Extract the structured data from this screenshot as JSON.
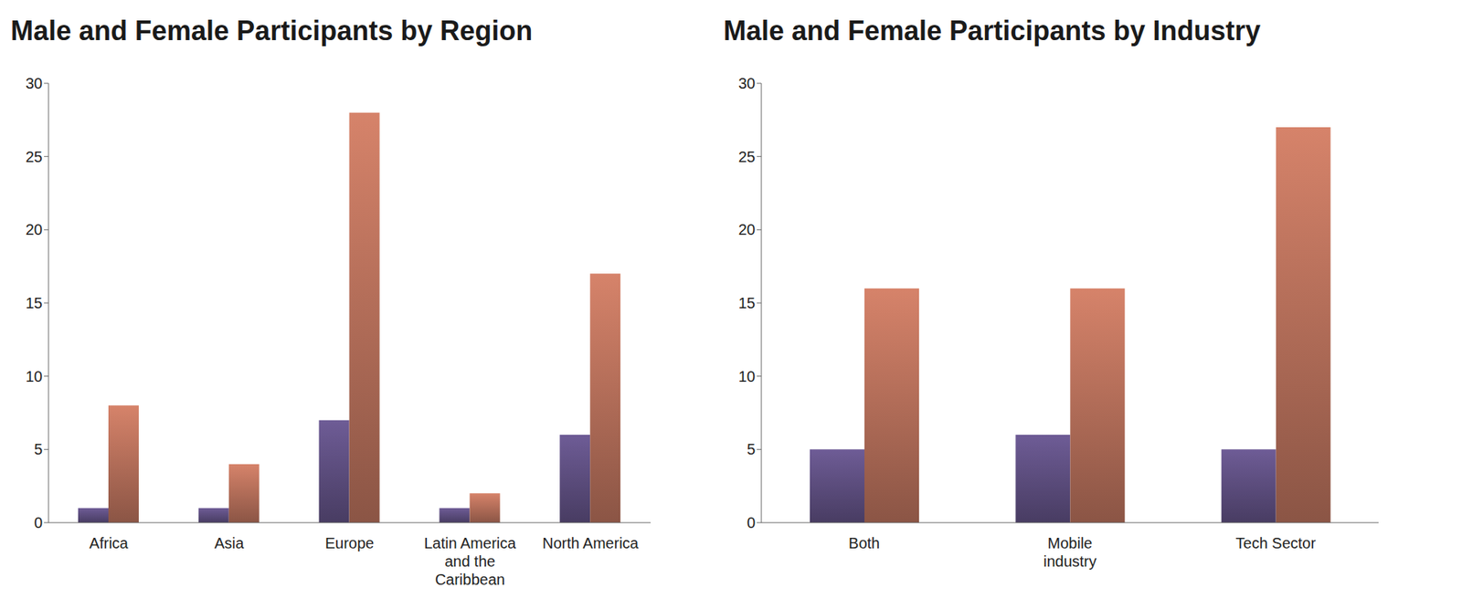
{
  "chart_data": [
    {
      "type": "bar",
      "title": "Male and Female Participants by Region",
      "categories": [
        "Africa",
        "Asia",
        "Europe",
        "Latin America and the Caribbean",
        "North America"
      ],
      "series": [
        {
          "color": "#6e5c96",
          "values": [
            1,
            1,
            7,
            1,
            6
          ]
        },
        {
          "color": "#d6836a",
          "values": [
            8,
            4,
            28,
            2,
            17
          ]
        }
      ],
      "ylim": [
        0,
        30
      ],
      "yticks": [
        0,
        5,
        10,
        15,
        20,
        25,
        30
      ],
      "grid": false
    },
    {
      "type": "bar",
      "title": "Male and Female Participants by Industry",
      "categories": [
        "Both",
        "Mobile industry",
        "Tech Sector"
      ],
      "series": [
        {
          "color": "#6e5c96",
          "values": [
            5,
            6,
            5
          ]
        },
        {
          "color": "#d6836a",
          "values": [
            16,
            16,
            27
          ]
        }
      ],
      "ylim": [
        0,
        30
      ],
      "yticks": [
        0,
        5,
        10,
        15,
        20,
        25,
        30
      ],
      "grid": false
    }
  ]
}
